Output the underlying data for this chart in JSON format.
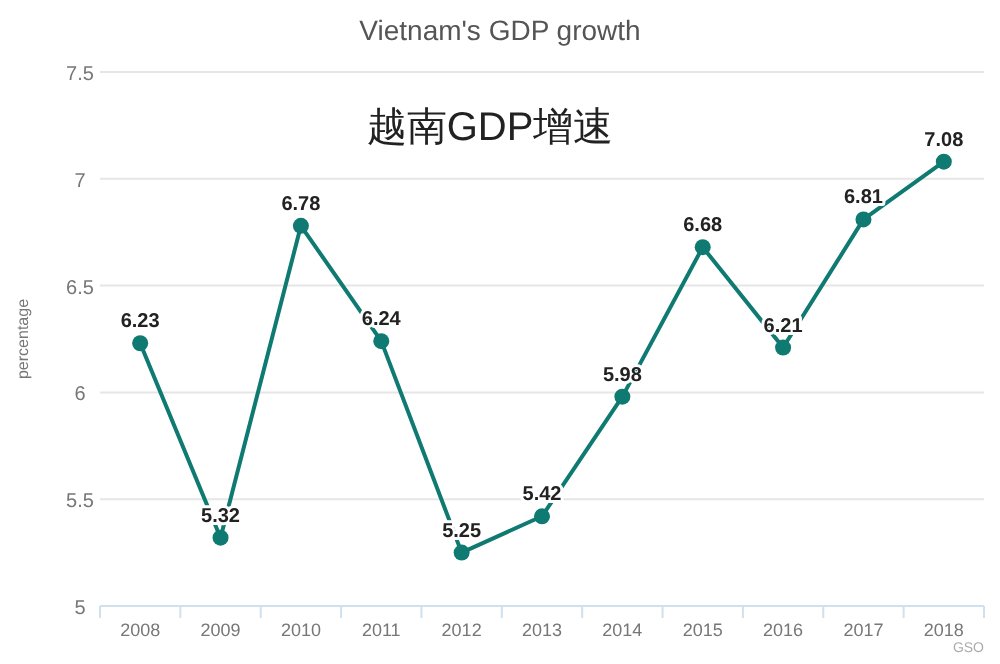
{
  "chart_data": {
    "type": "line",
    "title": "Vietnam's GDP growth",
    "subtitle": "越南GDP增速",
    "ylabel": "percentage",
    "categories": [
      "2008",
      "2009",
      "2010",
      "2011",
      "2012",
      "2013",
      "2014",
      "2015",
      "2016",
      "2017",
      "2018"
    ],
    "series": [
      {
        "color": "#0e7a72",
        "values": [
          6.23,
          5.32,
          6.78,
          6.24,
          5.25,
          5.42,
          5.98,
          6.68,
          6.21,
          6.81,
          7.08
        ]
      }
    ],
    "ylim": [
      5,
      7.5
    ],
    "yticks": [
      5,
      5.5,
      6,
      6.5,
      7,
      7.5
    ],
    "grid": "y",
    "marker": "circle",
    "line_style": "solid",
    "data_labels": true,
    "annotations": [
      "GSO"
    ]
  }
}
